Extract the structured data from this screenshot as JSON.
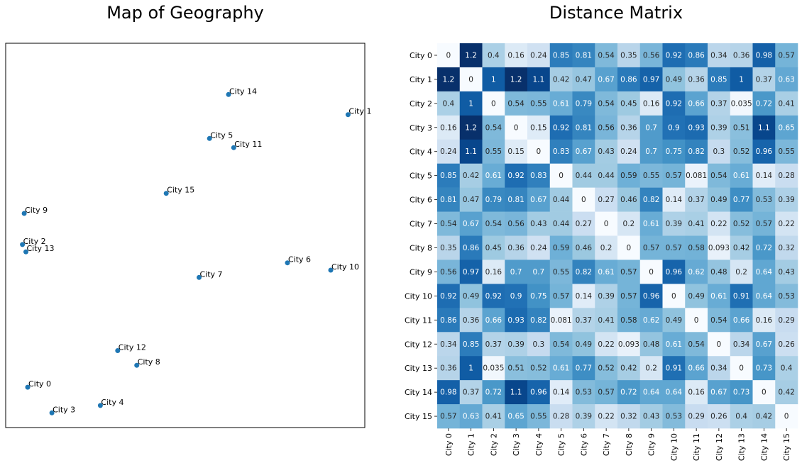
{
  "colors": {
    "point": "#1f77b4",
    "heat_low": "#f7fbff",
    "heat_mid": "#6baed6",
    "heat_high": "#08306b",
    "text_dark": "#262626",
    "text_light": "#ffffff"
  },
  "chart_data": [
    {
      "type": "scatter",
      "title": "Map of Geography",
      "grid": false,
      "points": [
        {
          "label": "City 0",
          "x": 0.045,
          "y": 0.085
        },
        {
          "label": "City 1",
          "x": 0.97,
          "y": 0.83
        },
        {
          "label": "City 2",
          "x": 0.03,
          "y": 0.475
        },
        {
          "label": "City 3",
          "x": 0.115,
          "y": 0.015
        },
        {
          "label": "City 4",
          "x": 0.255,
          "y": 0.035
        },
        {
          "label": "City 5",
          "x": 0.57,
          "y": 0.765
        },
        {
          "label": "City 6",
          "x": 0.795,
          "y": 0.425
        },
        {
          "label": "City 7",
          "x": 0.54,
          "y": 0.385
        },
        {
          "label": "City 8",
          "x": 0.36,
          "y": 0.145
        },
        {
          "label": "City 9",
          "x": 0.035,
          "y": 0.56
        },
        {
          "label": "City 10",
          "x": 0.92,
          "y": 0.405
        },
        {
          "label": "City 11",
          "x": 0.64,
          "y": 0.74
        },
        {
          "label": "City 12",
          "x": 0.305,
          "y": 0.185
        },
        {
          "label": "City 13",
          "x": 0.04,
          "y": 0.455
        },
        {
          "label": "City 14",
          "x": 0.625,
          "y": 0.885
        },
        {
          "label": "City 15",
          "x": 0.445,
          "y": 0.615
        }
      ]
    },
    {
      "type": "heatmap",
      "title": "Distance Matrix",
      "row_labels": [
        "City 0",
        "City 1",
        "City 2",
        "City 3",
        "City 4",
        "City 5",
        "City 6",
        "City 7",
        "City 8",
        "City 9",
        "City 10",
        "City 11",
        "City 12",
        "City 13",
        "City 14",
        "City 15"
      ],
      "col_labels": [
        "City 0",
        "City 1",
        "City 2",
        "City 3",
        "City 4",
        "City 5",
        "City 6",
        "City 7",
        "City 8",
        "City 9",
        "City 10",
        "City 11",
        "City 12",
        "City 13",
        "City 14",
        "City 15"
      ],
      "vmin": 0,
      "vmax": 1.2,
      "values": [
        [
          "0",
          "1.2",
          "0.4",
          "0.16",
          "0.24",
          "0.85",
          "0.81",
          "0.54",
          "0.35",
          "0.56",
          "0.92",
          "0.86",
          "0.34",
          "0.36",
          "0.98",
          "0.57"
        ],
        [
          "1.2",
          "0",
          "1",
          "1.2",
          "1.1",
          "0.42",
          "0.47",
          "0.67",
          "0.86",
          "0.97",
          "0.49",
          "0.36",
          "0.85",
          "1",
          "0.37",
          "0.63"
        ],
        [
          "0.4",
          "1",
          "0",
          "0.54",
          "0.55",
          "0.61",
          "0.79",
          "0.54",
          "0.45",
          "0.16",
          "0.92",
          "0.66",
          "0.37",
          "0.035",
          "0.72",
          "0.41"
        ],
        [
          "0.16",
          "1.2",
          "0.54",
          "0",
          "0.15",
          "0.92",
          "0.81",
          "0.56",
          "0.36",
          "0.7",
          "0.9",
          "0.93",
          "0.39",
          "0.51",
          "1.1",
          "0.65"
        ],
        [
          "0.24",
          "1.1",
          "0.55",
          "0.15",
          "0",
          "0.83",
          "0.67",
          "0.43",
          "0.24",
          "0.7",
          "0.75",
          "0.82",
          "0.3",
          "0.52",
          "0.96",
          "0.55"
        ],
        [
          "0.85",
          "0.42",
          "0.61",
          "0.92",
          "0.83",
          "0",
          "0.44",
          "0.44",
          "0.59",
          "0.55",
          "0.57",
          "0.081",
          "0.54",
          "0.61",
          "0.14",
          "0.28"
        ],
        [
          "0.81",
          "0.47",
          "0.79",
          "0.81",
          "0.67",
          "0.44",
          "0",
          "0.27",
          "0.46",
          "0.82",
          "0.14",
          "0.37",
          "0.49",
          "0.77",
          "0.53",
          "0.39"
        ],
        [
          "0.54",
          "0.67",
          "0.54",
          "0.56",
          "0.43",
          "0.44",
          "0.27",
          "0",
          "0.2",
          "0.61",
          "0.39",
          "0.41",
          "0.22",
          "0.52",
          "0.57",
          "0.22"
        ],
        [
          "0.35",
          "0.86",
          "0.45",
          "0.36",
          "0.24",
          "0.59",
          "0.46",
          "0.2",
          "0",
          "0.57",
          "0.57",
          "0.58",
          "0.093",
          "0.42",
          "0.72",
          "0.32"
        ],
        [
          "0.56",
          "0.97",
          "0.16",
          "0.7",
          "0.7",
          "0.55",
          "0.82",
          "0.61",
          "0.57",
          "0",
          "0.96",
          "0.62",
          "0.48",
          "0.2",
          "0.64",
          "0.43"
        ],
        [
          "0.92",
          "0.49",
          "0.92",
          "0.9",
          "0.75",
          "0.57",
          "0.14",
          "0.39",
          "0.57",
          "0.96",
          "0",
          "0.49",
          "0.61",
          "0.91",
          "0.64",
          "0.53"
        ],
        [
          "0.86",
          "0.36",
          "0.66",
          "0.93",
          "0.82",
          "0.081",
          "0.37",
          "0.41",
          "0.58",
          "0.62",
          "0.49",
          "0",
          "0.54",
          "0.66",
          "0.16",
          "0.29"
        ],
        [
          "0.34",
          "0.85",
          "0.37",
          "0.39",
          "0.3",
          "0.54",
          "0.49",
          "0.22",
          "0.093",
          "0.48",
          "0.61",
          "0.54",
          "0",
          "0.34",
          "0.67",
          "0.26"
        ],
        [
          "0.36",
          "1",
          "0.035",
          "0.51",
          "0.52",
          "0.61",
          "0.77",
          "0.52",
          "0.42",
          "0.2",
          "0.91",
          "0.66",
          "0.34",
          "0",
          "0.73",
          "0.4"
        ],
        [
          "0.98",
          "0.37",
          "0.72",
          "1.1",
          "0.96",
          "0.14",
          "0.53",
          "0.57",
          "0.72",
          "0.64",
          "0.64",
          "0.16",
          "0.67",
          "0.73",
          "0",
          "0.42"
        ],
        [
          "0.57",
          "0.63",
          "0.41",
          "0.65",
          "0.55",
          "0.28",
          "0.39",
          "0.22",
          "0.32",
          "0.43",
          "0.53",
          "0.29",
          "0.26",
          "0.4",
          "0.42",
          "0"
        ]
      ]
    }
  ]
}
